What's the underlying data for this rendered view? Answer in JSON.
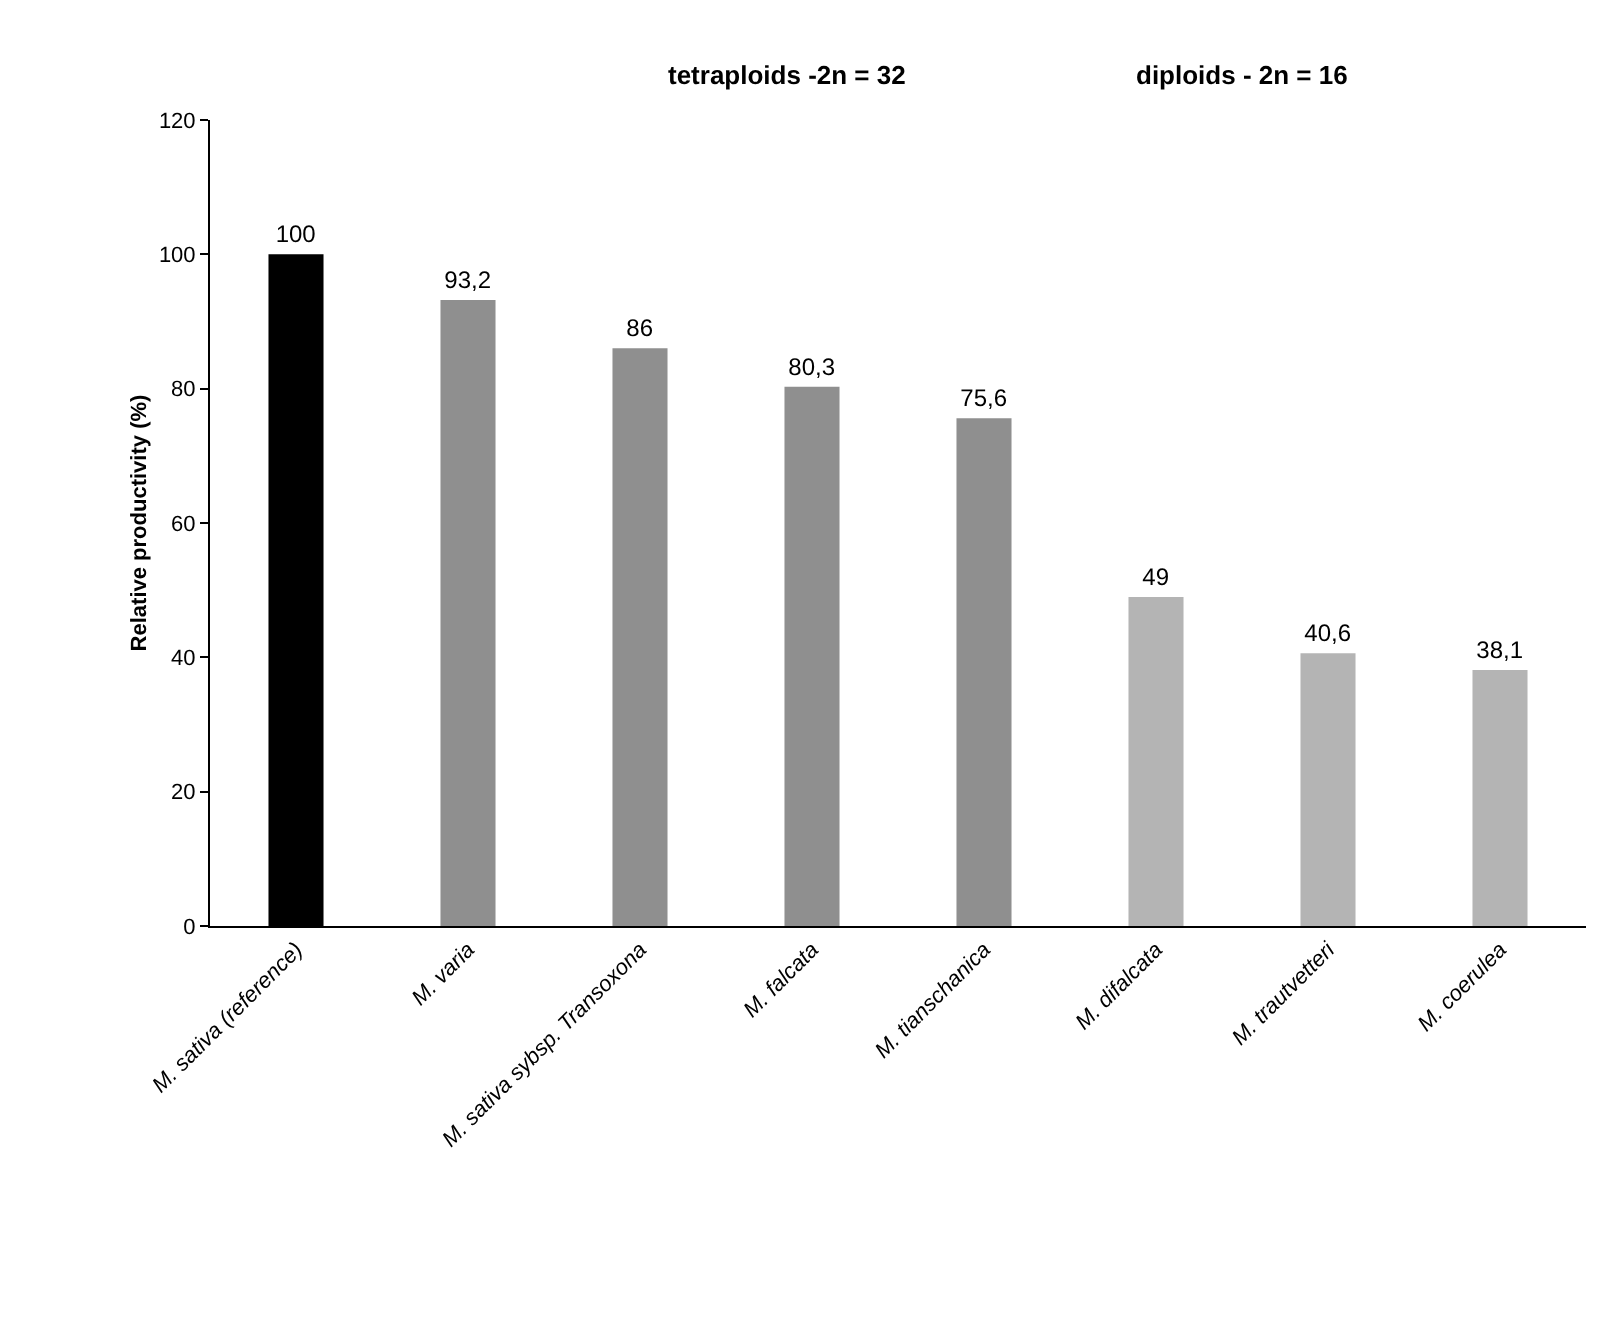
{
  "chart_data": {
    "type": "bar",
    "ylabel": "Relative productivity (%)",
    "annotations": [
      "tetraploids -2n = 32",
      "diploids - 2n = 16"
    ],
    "categories": [
      "M. sativa (reference)",
      "M. varia",
      "M. sativa sybsp. Transoxona",
      "M. falcata",
      "M. tianschanica",
      "M. difalcata",
      "M. trautvetteri",
      "M. coerulea"
    ],
    "values": [
      100,
      93.2,
      86,
      80.3,
      75.6,
      49,
      40.6,
      38.1
    ],
    "value_labels": [
      "100",
      "93,2",
      "86",
      "80,3",
      "75,6",
      "49",
      "40,6",
      "38,1"
    ],
    "colors": [
      "#000000",
      "#8f8f8f",
      "#8f8f8f",
      "#8f8f8f",
      "#8f8f8f",
      "#b4b4b4",
      "#b4b4b4",
      "#b4b4b4"
    ],
    "ylim": [
      0,
      120
    ],
    "yticks": [
      0,
      20,
      40,
      60,
      80,
      100,
      120
    ],
    "grid": false,
    "legend": false
  }
}
